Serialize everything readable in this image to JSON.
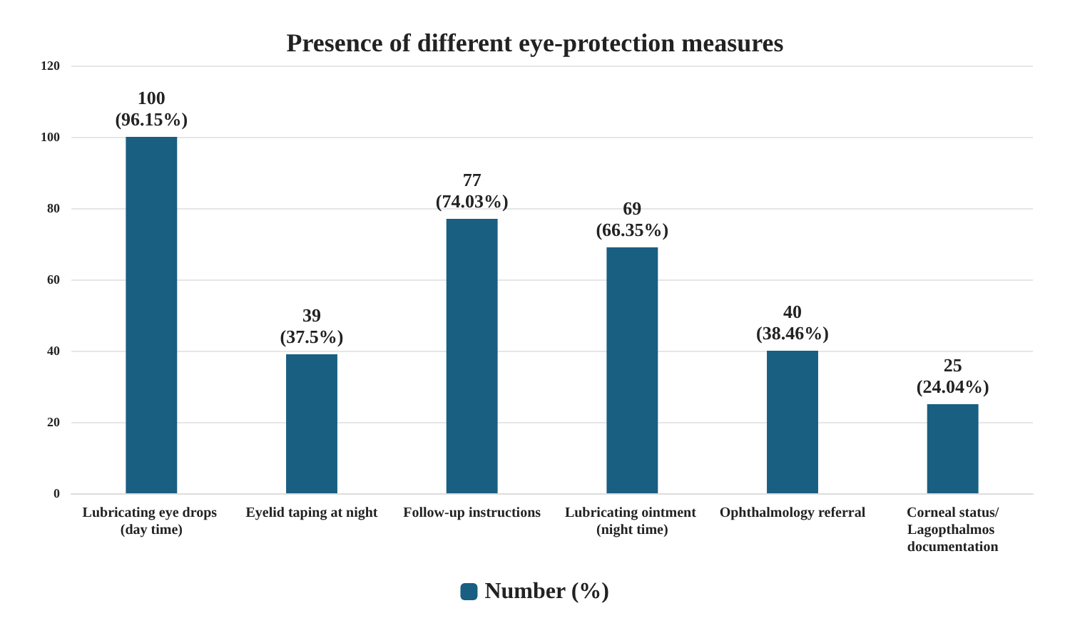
{
  "chart_data": {
    "type": "bar",
    "title": "Presence of different eye-protection measures",
    "categories": [
      "Lubricating eye drops (day time)",
      "Eyelid taping at night",
      "Follow-up instructions",
      "Lubricating ointment (night time)",
      "Ophthalmology referral",
      "Corneal status/Lagopthalmos documentation"
    ],
    "series": [
      {
        "name": "Number (%)",
        "color": "#185f82",
        "values": [
          100,
          39,
          77,
          69,
          40,
          25
        ],
        "value_labels": [
          "100\n(96.15%)",
          "39\n(37.5%)",
          "77\n(74.03%)",
          "69\n(66.35%)",
          "40\n(38.46%)",
          "25\n(24.04%)"
        ]
      }
    ],
    "ylim": [
      0,
      120
    ],
    "yticks": [
      0,
      20,
      40,
      60,
      80,
      100,
      120
    ],
    "grid": "y",
    "legend": "bottom"
  }
}
